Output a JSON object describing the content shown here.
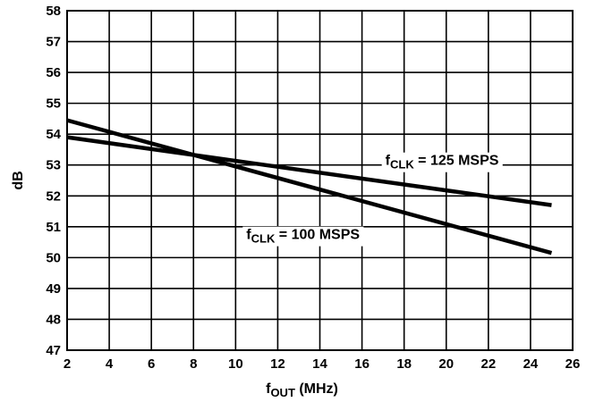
{
  "chart_data": {
    "type": "line",
    "title": "",
    "xlabel": {
      "main": "f",
      "sub": "OUT",
      "suffix": " (MHz)"
    },
    "ylabel": "dB",
    "xlim": [
      2,
      26
    ],
    "ylim": [
      47,
      58
    ],
    "grid": true,
    "xticks": [
      "2",
      "4",
      "6",
      "8",
      "10",
      "12",
      "14",
      "16",
      "18",
      "20",
      "22",
      "24",
      "26"
    ],
    "yticks": [
      "47",
      "48",
      "49",
      "50",
      "51",
      "52",
      "53",
      "54",
      "55",
      "56",
      "57",
      "58"
    ],
    "series": [
      {
        "name": "fCLK = 125 MSPS",
        "x": [
          2,
          25
        ],
        "y": [
          53.9,
          51.7
        ],
        "label": {
          "main": "f",
          "sub": "CLK",
          "suffix": " = 125 MSPS",
          "at_x": 19.8,
          "at_y": 53.0
        }
      },
      {
        "name": "fCLK = 100 MSPS",
        "x": [
          2,
          25
        ],
        "y": [
          54.45,
          50.15
        ],
        "label": {
          "main": "f",
          "sub": "CLK",
          "suffix": " = 100 MSPS",
          "at_x": 13.2,
          "at_y": 50.6
        }
      }
    ]
  }
}
